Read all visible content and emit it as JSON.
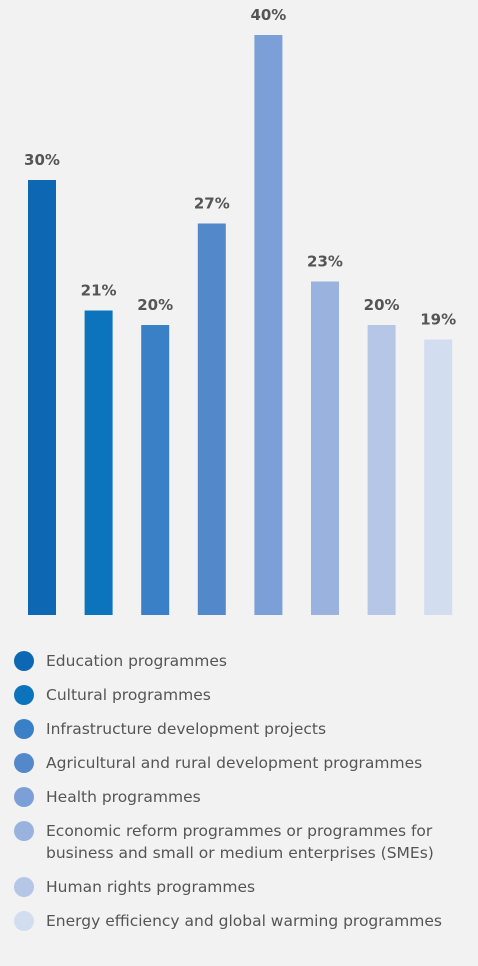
{
  "chart_data": {
    "type": "bar",
    "title": "",
    "xlabel": "",
    "ylabel": "",
    "ylim": [
      0,
      40
    ],
    "grid": false,
    "legend_position": "bottom",
    "categories": [
      "Education programmes",
      "Cultural programmes",
      "Infrastructure development projects",
      "Agricultural and rural development programmes",
      "Health programmes",
      "Economic reform programmes or programmes for business and small or medium enterprises (SMEs)",
      "Human rights programmes",
      "Energy efficiency and global warming programmes"
    ],
    "values": [
      30,
      21,
      20,
      27,
      40,
      23,
      20,
      19
    ],
    "value_labels": [
      "30%",
      "21%",
      "20%",
      "27%",
      "40%",
      "23%",
      "20%",
      "19%"
    ],
    "colors": [
      "#0d67b2",
      "#0b74bd",
      "#3a80c7",
      "#5389cb",
      "#7b9fd6",
      "#9ab2de",
      "#b6c6e7",
      "#d3ddf0"
    ]
  }
}
